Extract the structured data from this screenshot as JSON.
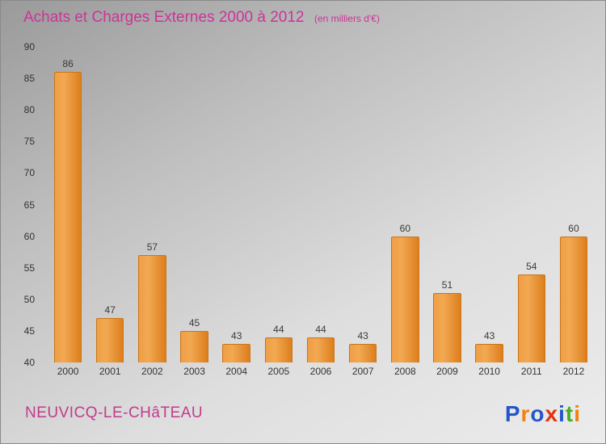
{
  "header": {
    "title": "Achats et Charges Externes 2000 à 2012",
    "subtitle": "(en milliers d'€)"
  },
  "chart_data": {
    "type": "bar",
    "title": "Achats et Charges Externes 2000 à 2012",
    "subtitle": "(en milliers d'€)",
    "categories": [
      "2000",
      "2001",
      "2002",
      "2003",
      "2004",
      "2005",
      "2006",
      "2007",
      "2008",
      "2009",
      "2010",
      "2011",
      "2012"
    ],
    "values": [
      86,
      47,
      57,
      45,
      43,
      44,
      44,
      43,
      60,
      51,
      43,
      54,
      60
    ],
    "xlabel": "",
    "ylabel": "",
    "ylim": [
      40,
      90
    ],
    "ytick_step": 5,
    "grid": false,
    "legend": false,
    "bar_color": "#e68a2e"
  },
  "footer": {
    "location": "NEUVICQ-LE-CHâTEAU",
    "logo_letters": [
      {
        "ch": "P",
        "color": "#2456c8"
      },
      {
        "ch": "r",
        "color": "#f2820a"
      },
      {
        "ch": "o",
        "color": "#2456c8"
      },
      {
        "ch": "x",
        "color": "#e5330f"
      },
      {
        "ch": "i",
        "color": "#2456c8"
      },
      {
        "ch": "t",
        "color": "#44b022"
      },
      {
        "ch": "i",
        "color": "#f2820a"
      }
    ]
  },
  "colors": {
    "accent_magenta": "#cc3399",
    "bar_orange": "#e68a2e",
    "text_dark": "#333333"
  }
}
